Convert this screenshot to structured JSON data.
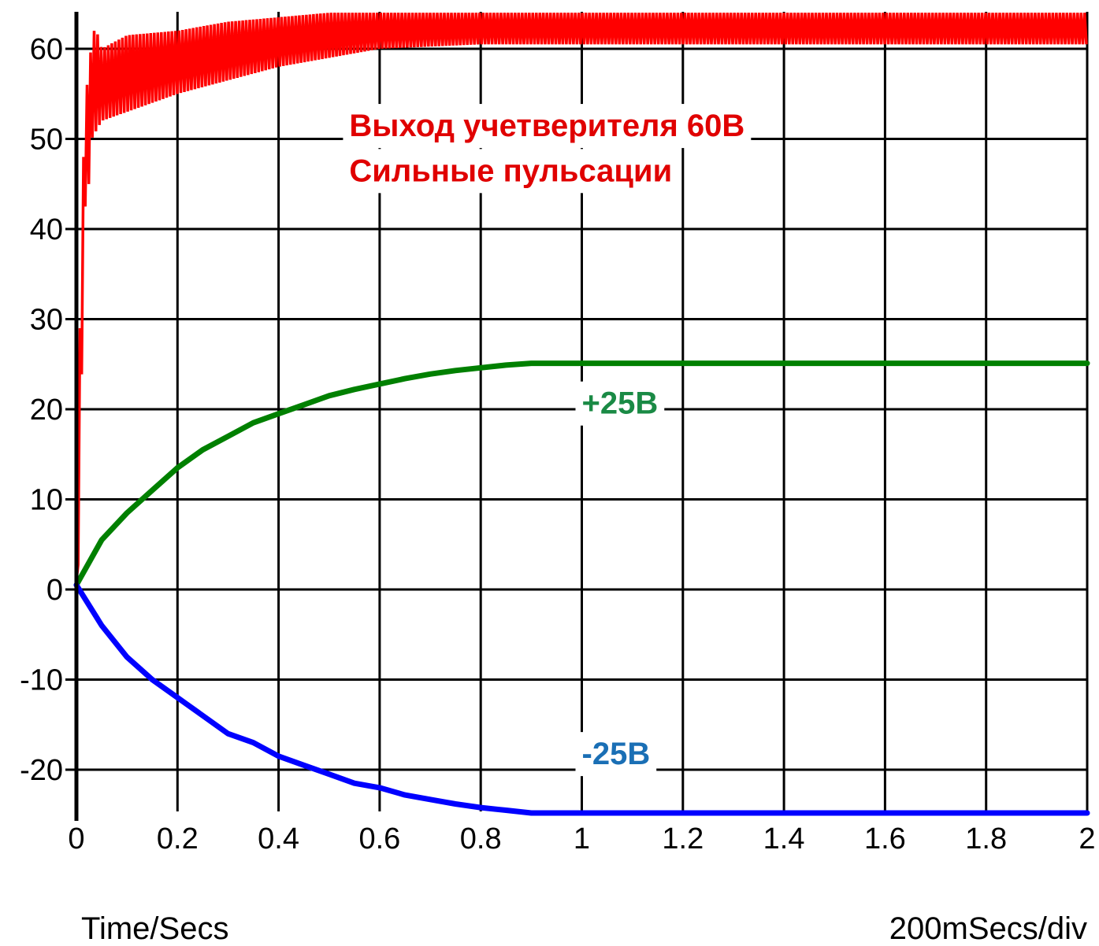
{
  "chart_data": {
    "type": "line",
    "xlabel": "Time/Secs",
    "x_scale_label": "200mSecs/div",
    "xlim": [
      0,
      2
    ],
    "ylim": [
      -25,
      65
    ],
    "x_ticks": [
      0,
      0.2,
      0.4,
      0.6,
      0.8,
      1,
      1.2,
      1.4,
      1.6,
      1.8,
      2
    ],
    "x_tick_labels": [
      "0",
      "0.2",
      "0.4",
      "0.6",
      "0.8",
      "1",
      "1.2",
      "1.4",
      "1.6",
      "1.8",
      "2"
    ],
    "y_ticks": [
      -20,
      -10,
      0,
      10,
      20,
      30,
      40,
      50,
      60
    ],
    "y_tick_labels": [
      "-20",
      "-10",
      "0",
      "10",
      "20",
      "30",
      "40",
      "50",
      "60"
    ],
    "grid": true,
    "series": [
      {
        "color": "#ff0000",
        "x": [
          0,
          0.003,
          0.005,
          0.008,
          0.012,
          0.015,
          0.02,
          0.025,
          0.03,
          0.04,
          0.05,
          0.1,
          0.2,
          0.3,
          0.4,
          0.5,
          0.6,
          0.8,
          1.0,
          1.2,
          1.5,
          2.0
        ],
        "y_upper": [
          1,
          15,
          27,
          30,
          40,
          52,
          56,
          56,
          62,
          62,
          60,
          61.5,
          62,
          63,
          63.5,
          64,
          64,
          64,
          64,
          64,
          64,
          64
        ],
        "y_lower": [
          1,
          2,
          5,
          22,
          25,
          40,
          45,
          45,
          50,
          51,
          52,
          53,
          55,
          56.5,
          58,
          59,
          60,
          60.5,
          60.5,
          60.5,
          60.5,
          60.5
        ]
      },
      {
        "color": "#008000",
        "x": [
          0,
          0.05,
          0.1,
          0.15,
          0.2,
          0.25,
          0.3,
          0.35,
          0.4,
          0.45,
          0.5,
          0.55,
          0.6,
          0.65,
          0.7,
          0.75,
          0.8,
          0.85,
          0.9,
          0.95,
          1.0,
          1.5,
          2.0
        ],
        "y": [
          0.5,
          5.5,
          8.5,
          11,
          13.5,
          15.5,
          17,
          18.5,
          19.5,
          20.5,
          21.5,
          22.2,
          22.8,
          23.4,
          23.9,
          24.3,
          24.6,
          24.9,
          25.1,
          25.1,
          25.1,
          25.1,
          25.1
        ]
      },
      {
        "color": "#0000ff",
        "x": [
          0,
          0.05,
          0.1,
          0.15,
          0.2,
          0.25,
          0.3,
          0.35,
          0.4,
          0.45,
          0.5,
          0.55,
          0.6,
          0.65,
          0.7,
          0.75,
          0.8,
          0.85,
          0.9,
          0.95,
          1.0,
          1.5,
          2.0
        ],
        "y": [
          0.5,
          -4,
          -7.5,
          -10,
          -12,
          -14,
          -16,
          -17,
          -18.5,
          -19.5,
          -20.5,
          -21.5,
          -22,
          -22.8,
          -23.3,
          -23.8,
          -24.2,
          -24.5,
          -24.8,
          -24.8,
          -24.8,
          -24.8,
          -24.8
        ]
      }
    ],
    "annotations": [
      {
        "text": "Выход учетверителя 60В",
        "color": "#e00000",
        "x": 0.54,
        "y": 50.3
      },
      {
        "text": "Сильные пульсации",
        "color": "#e00000",
        "x": 0.54,
        "y": 45.3
      },
      {
        "text": "+25В",
        "color": "#1a8a45",
        "x": 1.0,
        "y": 19.5
      },
      {
        "text": "-25В",
        "color": "#1a6fb5",
        "x": 1.0,
        "y": -19.4
      }
    ]
  }
}
